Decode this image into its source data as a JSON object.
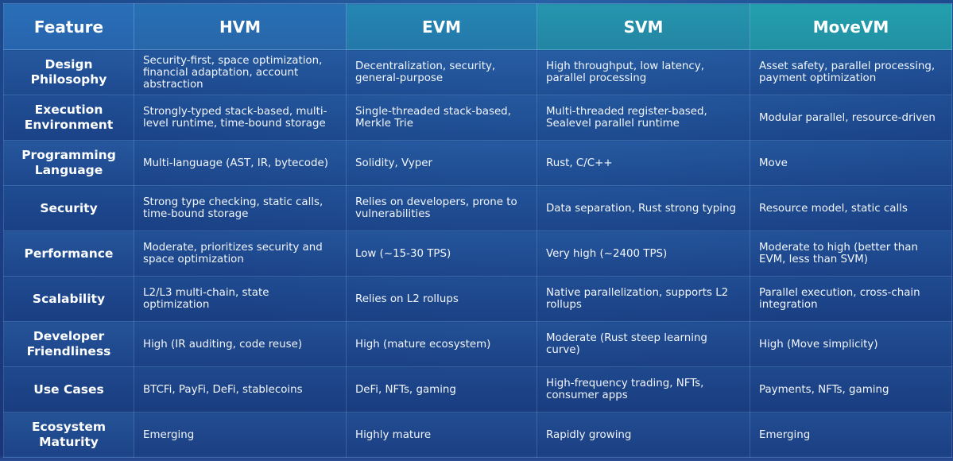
{
  "table": {
    "headers": [
      "Feature",
      "HVM",
      "EVM",
      "SVM",
      "MoveVM"
    ],
    "rows": [
      {
        "feature": "Design Philosophy",
        "cells": [
          "Security-first, space optimization, financial adaptation, account abstraction",
          "Decentralization, security, general-purpose",
          "High throughput, low latency, parallel processing",
          "Asset safety, parallel processing, payment optimization"
        ]
      },
      {
        "feature": "Execution Environment",
        "cells": [
          "Strongly-typed stack-based, multi-level runtime, time-bound storage",
          "Single-threaded stack-based, Merkle Trie",
          "Multi-threaded register-based, Sealevel parallel runtime",
          "Modular parallel, resource-driven"
        ]
      },
      {
        "feature": "Programming Language",
        "cells": [
          "Multi-language (AST, IR, bytecode)",
          "Solidity, Vyper",
          "Rust, C/C++",
          "Move"
        ]
      },
      {
        "feature": "Security",
        "cells": [
          "Strong type checking, static calls, time-bound storage",
          "Relies on developers, prone to vulnerabilities",
          "Data separation, Rust strong typing",
          "Resource model, static calls"
        ]
      },
      {
        "feature": "Performance",
        "cells": [
          "Moderate, prioritizes security and space optimization",
          "Low (~15-30 TPS)",
          "Very high (~2400 TPS)",
          "Moderate to high (better than EVM, less than SVM)"
        ]
      },
      {
        "feature": "Scalability",
        "cells": [
          "L2/L3 multi-chain, state optimization",
          "Relies on L2 rollups",
          "Native parallelization, supports L2 rollups",
          "Parallel execution, cross-chain integration"
        ]
      },
      {
        "feature": "Developer Friendliness",
        "cells": [
          "High (IR auditing, code reuse)",
          "High (mature ecosystem)",
          "Moderate (Rust steep learning curve)",
          "High (Move simplicity)"
        ]
      },
      {
        "feature": "Use Cases",
        "cells": [
          "BTCFi, PayFi, DeFi, stablecoins",
          "DeFi, NFTs, gaming",
          "High-frequency trading, NFTs, consumer apps",
          "Payments, NFTs, gaming"
        ]
      },
      {
        "feature": "Ecosystem Maturity",
        "cells": [
          "Emerging",
          "Highly mature",
          "Rapidly growing",
          "Emerging"
        ]
      }
    ]
  }
}
